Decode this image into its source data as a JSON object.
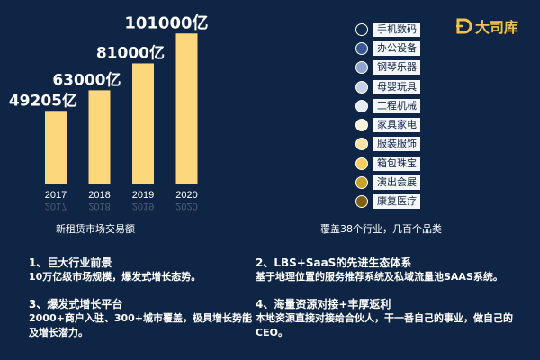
{
  "chart_data": {
    "type": "bar",
    "categories": [
      "2017",
      "2018",
      "2019",
      "2020"
    ],
    "values": [
      49205,
      63000,
      81000,
      101000
    ],
    "value_labels": [
      "49205亿",
      "63000亿",
      "81000亿",
      "101000亿"
    ],
    "caption": "新租赁市场交易额",
    "bar_color": "#fdd77b",
    "ylim": [
      0,
      115000
    ]
  },
  "logo": {
    "text": "大司库",
    "color": "#f1c24a"
  },
  "legend": {
    "items": [
      {
        "label": "手机数码",
        "color": "#12294e"
      },
      {
        "label": "办公设备",
        "color": "#3a5796"
      },
      {
        "label": "钢琴乐器",
        "color": "#8fa4d1"
      },
      {
        "label": "母婴玩具",
        "color": "#c7d2e8"
      },
      {
        "label": "工程机械",
        "color": "#e6ebf4"
      },
      {
        "label": "家具家电",
        "color": "#fbf3dc"
      },
      {
        "label": "服装服饰",
        "color": "#fde2a1"
      },
      {
        "label": "箱包珠宝",
        "color": "#f8cf5e"
      },
      {
        "label": "演出会展",
        "color": "#c8a22b"
      },
      {
        "label": "康复医疗",
        "color": "#7d6112"
      }
    ],
    "caption": "覆盖38个行业，几百个品类"
  },
  "features": [
    {
      "title": "1、巨大行业前景",
      "desc": "10万亿级市场规模，爆发式增长态势。"
    },
    {
      "title": "2、LBS+SaaS的先进生态体系",
      "desc": "基于地理位置的服务推荐系统及私域流量池SAAS系统。"
    },
    {
      "title": "3、爆发式增长平台",
      "desc": "2000+商户入驻、300+城市覆盖，极具增长势能及增长潜力。"
    },
    {
      "title": "4、海量资源对接+丰厚返利",
      "desc": "本地资源直接对接给合伙人，干一番自己的事业，做自己的CEO。"
    }
  ]
}
